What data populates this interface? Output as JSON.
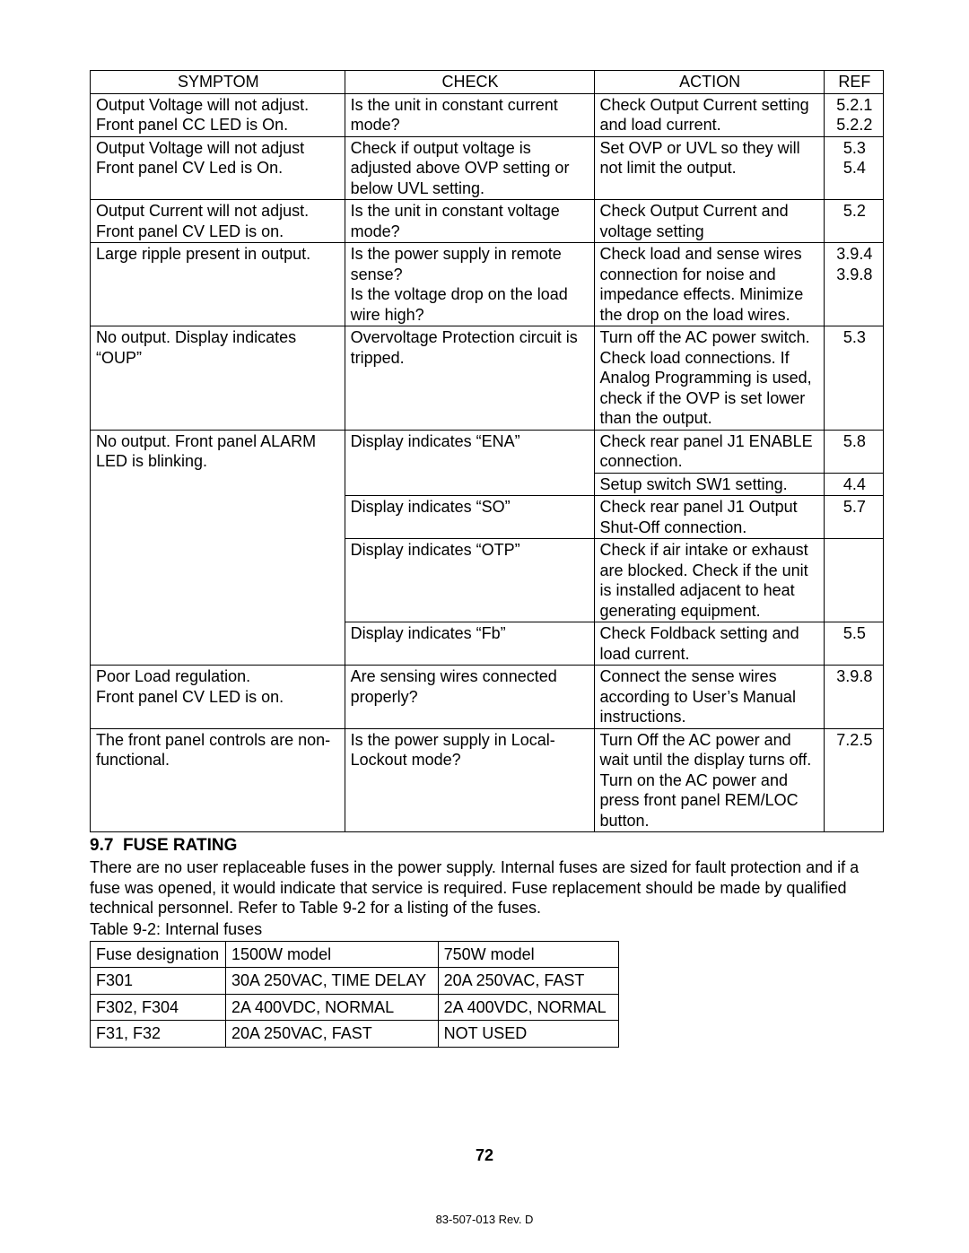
{
  "troubleshoot": {
    "headers": {
      "symptom": "SYMPTOM",
      "check": "CHECK",
      "action": "ACTION",
      "ref": "REF"
    },
    "rows": [
      {
        "symptom": "Output Voltage will not adjust. Front panel CC LED is On.",
        "check": "Is the unit in constant current mode?",
        "action": "Check Output Current setting and load current.",
        "ref": "5.2.1\n5.2.2"
      },
      {
        "symptom": "Output Voltage will not adjust Front panel CV Led is On.",
        "check": "Check if output voltage is adjusted above OVP setting or below UVL setting.",
        "action": "Set OVP or UVL so they will not limit the output.",
        "ref": "5.3\n5.4"
      },
      {
        "symptom": "Output Current will not adjust. Front panel CV LED is on.",
        "check": "Is the unit in constant voltage mode?",
        "action": "Check Output Current and voltage setting",
        "ref": "5.2"
      },
      {
        "symptom": "Large ripple present in output.",
        "check": "Is the power supply in remote sense?\nIs the voltage drop on the load wire high?",
        "action": "Check load and sense wires connection for noise and impedance effects. Minimize the drop on the load wires.",
        "ref": "3.9.4\n3.9.8"
      },
      {
        "symptom": "No output. Display indicates “OUP”",
        "check": "Overvoltage Protection circuit is tripped.",
        "action": "Turn off the AC power switch. Check load connections. If Analog Programming is used, check if the OVP is set lower than the output.",
        "ref": "5.3"
      },
      {
        "symptom": "No output. Front panel ALARM LED is blinking.",
        "check": "Display indicates “ENA”",
        "action": "Check rear panel J1 ENABLE connection.",
        "ref": "5.8",
        "action2": "Setup switch SW1 setting.",
        "ref2": "4.4"
      },
      {
        "check": "Display indicates “SO”",
        "action": "Check rear panel J1 Output Shut-Off connection.",
        "ref": "5.7"
      },
      {
        "check": "Display indicates “OTP”",
        "action": "Check if air intake or exhaust are blocked. Check if the unit is installed adjacent to heat generating equipment.",
        "ref": ""
      },
      {
        "check": "Display indicates “Fb”",
        "action": "Check Foldback setting and load current.",
        "ref": "5.5"
      },
      {
        "symptom": "Poor Load regulation.\nFront panel CV LED is on.",
        "check": "Are sensing wires connected properly?",
        "action": "Connect the sense wires according to User’s Manual instructions.",
        "ref": "3.9.8"
      },
      {
        "symptom": "The front panel controls are non-functional.",
        "check": "Is the power supply in Local-Lockout mode?",
        "action": "Turn Off the AC power and wait until the display turns off. Turn on the AC power and press front panel REM/LOC button.",
        "ref": "7.2.5"
      }
    ]
  },
  "section": {
    "number": "9.7",
    "title": "FUSE RATING",
    "body": "There are no user replaceable fuses in the power supply. Internal fuses are sized for fault protection and if a fuse was opened, it would indicate that service is required. Fuse replacement should be made by qualified technical personnel. Refer to Table 9-2 for a listing of the fuses.",
    "table_caption": "Table 9-2: Internal fuses"
  },
  "fuses": {
    "headers": {
      "c1": "Fuse designation",
      "c2": "1500W model",
      "c3": "750W model"
    },
    "rows": [
      {
        "c1": "F301",
        "c2": "30A 250VAC, TIME DELAY",
        "c3": "20A 250VAC, FAST"
      },
      {
        "c1": "F302, F304",
        "c2": "2A 400VDC, NORMAL",
        "c3": "2A 400VDC, NORMAL"
      },
      {
        "c1": "F31, F32",
        "c2": "20A 250VAC, FAST",
        "c3": "NOT USED"
      }
    ]
  },
  "page_number": "72",
  "footer": "83-507-013 Rev. D"
}
